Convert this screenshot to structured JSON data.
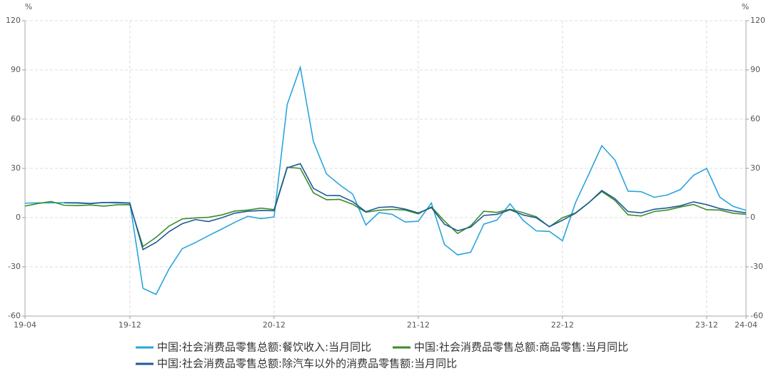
{
  "chart_data": {
    "type": "line",
    "y_unit": "%",
    "y2_unit": "%",
    "categories": [
      "19-04",
      null,
      null,
      null,
      null,
      null,
      null,
      null,
      "19-12",
      null,
      null,
      null,
      null,
      null,
      null,
      null,
      null,
      null,
      null,
      "20-12",
      null,
      null,
      null,
      null,
      null,
      null,
      null,
      null,
      null,
      null,
      "21-12",
      null,
      null,
      null,
      null,
      null,
      null,
      null,
      null,
      null,
      null,
      "22-12",
      null,
      null,
      null,
      null,
      null,
      null,
      null,
      null,
      null,
      null,
      "23-12",
      null,
      null,
      "24-04"
    ],
    "series": [
      {
        "name": "中国:社会消费品零售总额:餐饮收入:当月同比",
        "color": "#2aa5dd",
        "values": [
          8.8,
          9.0,
          9.0,
          9.1,
          9.1,
          8.7,
          9.2,
          9.3,
          9.0,
          -43.1,
          -46.8,
          -31.1,
          -18.9,
          -15.2,
          -11.0,
          -7.0,
          -2.9,
          0.8,
          -0.6,
          0.4,
          68.9,
          91.6,
          46.4,
          26.6,
          20.0,
          14.3,
          -4.5,
          3.1,
          2.0,
          -2.7,
          -2.2,
          8.9,
          -16.4,
          -22.7,
          -21.1,
          -4.0,
          -1.5,
          8.4,
          -1.7,
          -8.1,
          -8.4,
          -14.1,
          9.2,
          26.3,
          43.8,
          35.1,
          16.1,
          15.8,
          12.4,
          13.8,
          17.1,
          25.8,
          30.0,
          12.5,
          6.9,
          4.4
        ]
      },
      {
        "name": "中国:社会消费品零售总额:商品零售:当月同比",
        "color": "#3b8c2a",
        "values": [
          7.0,
          8.6,
          9.8,
          7.5,
          7.3,
          7.7,
          7.0,
          7.8,
          7.9,
          -17.6,
          -12.0,
          -5.1,
          -0.8,
          -0.2,
          0.2,
          1.6,
          4.0,
          4.6,
          5.8,
          4.9,
          30.7,
          30.0,
          15.1,
          10.9,
          11.1,
          8.1,
          3.3,
          4.5,
          5.0,
          4.6,
          2.3,
          6.5,
          -2.1,
          -9.7,
          -5.0,
          3.9,
          3.2,
          5.1,
          3.0,
          0.5,
          -5.6,
          -0.1,
          2.9,
          9.1,
          15.9,
          10.5,
          1.7,
          1.0,
          3.7,
          4.6,
          6.5,
          8.0,
          4.8,
          4.6,
          2.7,
          2.0
        ]
      },
      {
        "name": "中国:社会消费品零售总额:除汽车以外的消费品零售额:当月同比",
        "color": "#1d5a98",
        "values": [
          null,
          null,
          null,
          9.0,
          8.9,
          8.5,
          9.2,
          9.0,
          8.8,
          -19.5,
          -15.1,
          -8.5,
          -3.7,
          -1.2,
          -2.4,
          -0.1,
          2.7,
          3.9,
          4.3,
          4.2,
          30.3,
          32.9,
          17.8,
          13.5,
          13.4,
          9.7,
          3.6,
          6.2,
          6.6,
          5.2,
          2.8,
          6.1,
          -4.0,
          -8.0,
          -5.8,
          1.3,
          2.0,
          4.8,
          1.6,
          -0.1,
          -5.5,
          -1.6,
          2.7,
          9.0,
          16.5,
          11.5,
          3.7,
          2.9,
          5.1,
          5.9,
          7.2,
          9.6,
          7.9,
          5.5,
          4.1,
          2.9
        ]
      }
    ],
    "ylim": [
      -60,
      120
    ],
    "yticks": [
      -60,
      -30,
      0,
      30,
      60,
      90,
      120
    ],
    "y2lim": [
      -60,
      120
    ],
    "y2ticks": [
      -60,
      -30,
      0,
      30,
      60,
      90,
      120
    ],
    "grid": true,
    "legend": "bottom"
  }
}
